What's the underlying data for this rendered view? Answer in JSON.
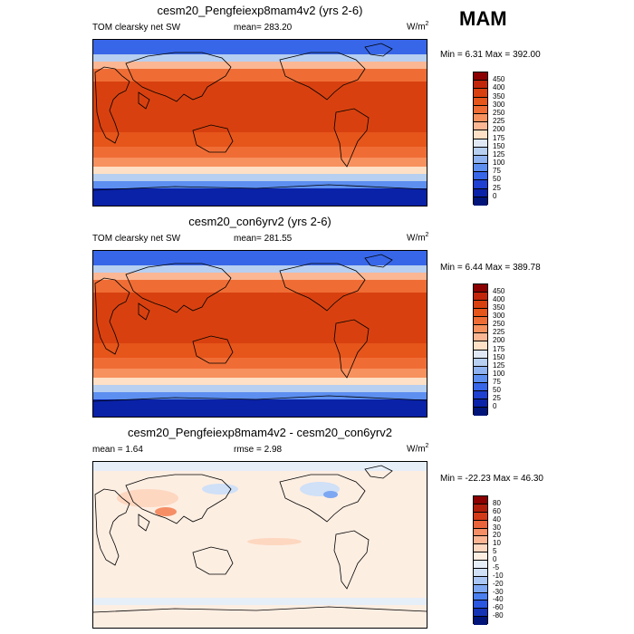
{
  "season": "MAM",
  "chart_data": [
    {
      "type": "heatmap",
      "title": "cesm20_Pengfeiexp8mam4v2 (yrs 2-6)",
      "left_label": "TOM clearsky net SW",
      "center_label": "mean=",
      "center_value": "283.20",
      "units_base": "W/m",
      "units_exp": "2",
      "min_label": "Min =",
      "min_value": "6.31",
      "max_label": "Max =",
      "max_value": "392.00",
      "colorbar_levels": [
        "450",
        "400",
        "350",
        "300",
        "250",
        "225",
        "200",
        "175",
        "150",
        "125",
        "100",
        "75",
        "50",
        "25",
        "0"
      ],
      "colorbar_colors": [
        "#8b0000",
        "#c1260a",
        "#d8410f",
        "#e6551a",
        "#ef6d35",
        "#f7915e",
        "#fbb793",
        "#fde0c5",
        "#dfe8f4",
        "#b7cff0",
        "#8fb2f0",
        "#5d8ff0",
        "#3766e8",
        "#1f40d0",
        "#0a22a8",
        "#00147a"
      ]
    },
    {
      "type": "heatmap",
      "title": "cesm20_con6yrv2 (yrs 2-6)",
      "left_label": "TOM clearsky net SW",
      "center_label": "mean=",
      "center_value": "281.55",
      "units_base": "W/m",
      "units_exp": "2",
      "min_label": "Min =",
      "min_value": "6.44",
      "max_label": "Max =",
      "max_value": "389.78",
      "colorbar_levels": [
        "450",
        "400",
        "350",
        "300",
        "250",
        "225",
        "200",
        "175",
        "150",
        "125",
        "100",
        "75",
        "50",
        "25",
        "0"
      ],
      "colorbar_colors": [
        "#8b0000",
        "#c1260a",
        "#d8410f",
        "#e6551a",
        "#ef6d35",
        "#f7915e",
        "#fbb793",
        "#fde0c5",
        "#dfe8f4",
        "#b7cff0",
        "#8fb2f0",
        "#5d8ff0",
        "#3766e8",
        "#1f40d0",
        "#0a22a8",
        "#00147a"
      ]
    },
    {
      "type": "heatmap",
      "title": "cesm20_Pengfeiexp8mam4v2 - cesm20_con6yrv2",
      "left_label": "mean =",
      "left_value": "1.64",
      "center_label": "rmse =",
      "center_value": "2.98",
      "units_base": "W/m",
      "units_exp": "2",
      "min_label": "Min =",
      "min_value": "-22.23",
      "max_label": "Max =",
      "max_value": "46.30",
      "colorbar_levels": [
        "80",
        "60",
        "40",
        "30",
        "20",
        "10",
        "5",
        "0",
        "-5",
        "-10",
        "-20",
        "-30",
        "-40",
        "-60",
        "-80"
      ],
      "colorbar_colors": [
        "#8b0000",
        "#b01d0a",
        "#d33a18",
        "#e9643a",
        "#f58e65",
        "#fbb593",
        "#fdd7c0",
        "#fdeee2",
        "#e6eef8",
        "#cfe0f7",
        "#a9c6f5",
        "#7da7f2",
        "#4a7ff0",
        "#2a56e0",
        "#1533b5",
        "#00147a"
      ]
    }
  ]
}
